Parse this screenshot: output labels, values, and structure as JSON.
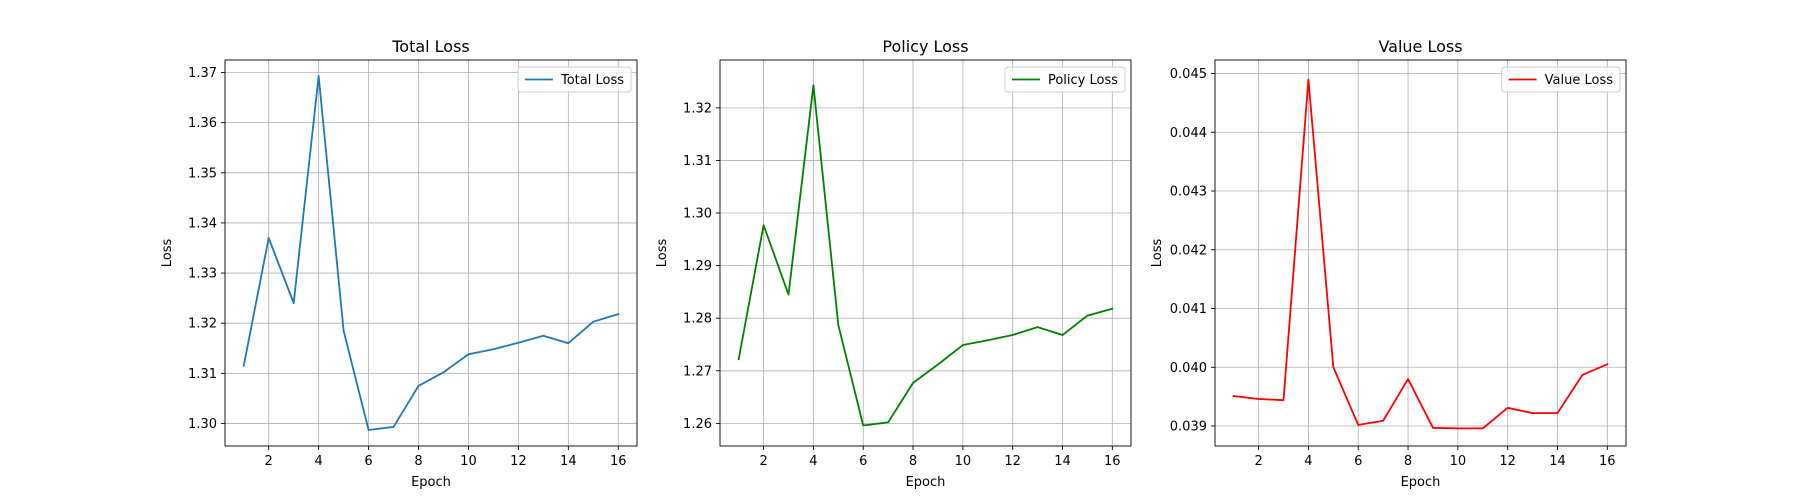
{
  "chart_data": [
    {
      "type": "line",
      "title": "Total Loss",
      "xlabel": "Epoch",
      "ylabel": "Loss",
      "xlim": [
        0.25,
        16.75
      ],
      "ylim": [
        1.2955,
        1.3725
      ],
      "xticks": [
        2,
        4,
        6,
        8,
        10,
        12,
        14,
        16
      ],
      "yticks": [
        1.3,
        1.31,
        1.32,
        1.33,
        1.34,
        1.35,
        1.36,
        1.37
      ],
      "ytick_labels": [
        "1.30",
        "1.31",
        "1.32",
        "1.33",
        "1.34",
        "1.35",
        "1.36",
        "1.37"
      ],
      "grid": true,
      "legend_position": "top-right",
      "x": [
        1,
        2,
        3,
        4,
        5,
        6,
        7,
        8,
        9,
        10,
        11,
        12,
        13,
        14,
        15,
        16
      ],
      "series": [
        {
          "name": "Total Loss",
          "color": "#1f77b4",
          "values": [
            1.3115,
            1.337,
            1.324,
            1.3693,
            1.3185,
            1.2987,
            1.2993,
            1.3075,
            1.3102,
            1.3138,
            1.3148,
            1.3161,
            1.3175,
            1.316,
            1.3203,
            1.3218
          ]
        }
      ]
    },
    {
      "type": "line",
      "title": "Policy Loss",
      "xlabel": "Epoch",
      "ylabel": "Loss",
      "xlim": [
        0.25,
        16.75
      ],
      "ylim": [
        1.2557,
        1.3291
      ],
      "xticks": [
        2,
        4,
        6,
        8,
        10,
        12,
        14,
        16
      ],
      "yticks": [
        1.26,
        1.27,
        1.28,
        1.29,
        1.3,
        1.31,
        1.32
      ],
      "ytick_labels": [
        "1.26",
        "1.27",
        "1.28",
        "1.29",
        "1.30",
        "1.31",
        "1.32"
      ],
      "grid": true,
      "legend_position": "top-right",
      "x": [
        1,
        2,
        3,
        4,
        5,
        6,
        7,
        8,
        9,
        10,
        11,
        12,
        13,
        14,
        15,
        16
      ],
      "series": [
        {
          "name": "Policy Loss",
          "color": "#008000",
          "values": [
            1.2722,
            1.2977,
            1.2845,
            1.3243,
            1.2787,
            1.2596,
            1.2602,
            1.2677,
            1.2712,
            1.2749,
            1.2758,
            1.2768,
            1.2783,
            1.2768,
            1.2805,
            1.2818
          ]
        }
      ]
    },
    {
      "type": "line",
      "title": "Value Loss",
      "xlabel": "Epoch",
      "ylabel": "Loss",
      "xlim": [
        0.25,
        16.75
      ],
      "ylim": [
        0.03866,
        0.04523
      ],
      "xticks": [
        2,
        4,
        6,
        8,
        10,
        12,
        14,
        16
      ],
      "yticks": [
        0.039,
        0.04,
        0.041,
        0.042,
        0.043,
        0.044,
        0.045
      ],
      "ytick_labels": [
        "0.039",
        "0.040",
        "0.041",
        "0.042",
        "0.043",
        "0.044",
        "0.045"
      ],
      "grid": true,
      "legend_position": "top-right",
      "x": [
        1,
        2,
        3,
        4,
        5,
        6,
        7,
        8,
        9,
        10,
        11,
        12,
        13,
        14,
        15,
        16
      ],
      "series": [
        {
          "name": "Value Loss",
          "color": "#ff0000",
          "values": [
            0.03951,
            0.03946,
            0.03944,
            0.0449,
            0.04,
            0.03902,
            0.03909,
            0.0398,
            0.03897,
            0.03896,
            0.03896,
            0.03931,
            0.03922,
            0.03922,
            0.03987,
            0.04005
          ]
        }
      ]
    }
  ]
}
